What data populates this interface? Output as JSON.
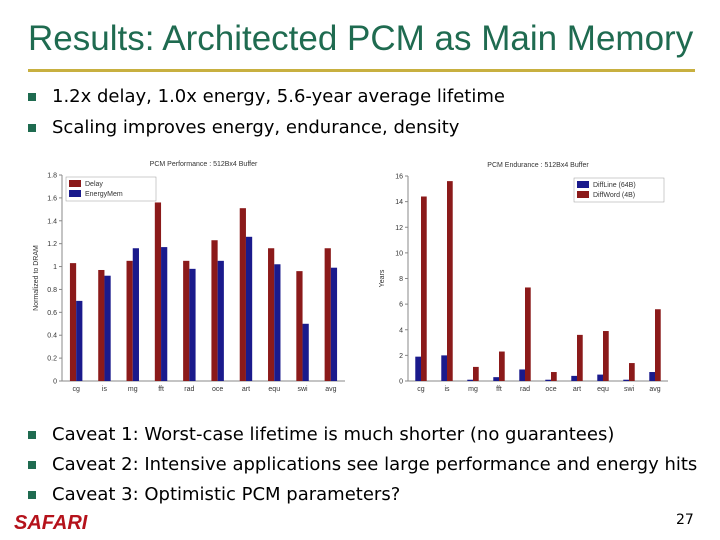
{
  "slide": {
    "title": "Results: Architected PCM as Main Memory",
    "bullets": [
      "1.2x delay, 1.0x energy, 5.6-year average lifetime",
      "Scaling improves energy, endurance, density"
    ],
    "caveats": [
      "Caveat 1: Worst-case lifetime is much shorter (no guarantees)",
      "Caveat 2: Intensive applications see large performance and energy hits",
      "Caveat 3: Optimistic PCM parameters?"
    ],
    "footer": "SAFARI",
    "page": "27"
  },
  "chart_data": [
    {
      "type": "bar",
      "title": "PCM Performance : 512Bx4 Buffer",
      "y_label": "Normalized to DRAM",
      "categories": [
        "cg",
        "is",
        "mg",
        "fft",
        "rad",
        "oce",
        "art",
        "equ",
        "swi",
        "avg"
      ],
      "series": [
        {
          "name": "Delay",
          "color": "#8b1a1a",
          "values": [
            1.03,
            0.97,
            1.05,
            1.56,
            1.05,
            1.23,
            1.51,
            1.16,
            0.96,
            1.16
          ]
        },
        {
          "name": "EnergyMem",
          "color": "#1a1a8c",
          "values": [
            0.7,
            0.92,
            1.16,
            1.17,
            0.98,
            1.05,
            1.26,
            1.02,
            0.5,
            0.99
          ]
        }
      ],
      "ylim": [
        0,
        1.8
      ],
      "yticks": [
        0,
        0.2,
        0.4,
        0.6,
        0.8,
        1,
        1.2,
        1.4,
        1.6,
        1.8
      ],
      "legend": "top-left"
    },
    {
      "type": "bar",
      "title": "PCM Endurance : 512Bx4 Buffer",
      "y_label": "Years",
      "categories": [
        "cg",
        "is",
        "mg",
        "fft",
        "rad",
        "oce",
        "art",
        "equ",
        "swi",
        "avg"
      ],
      "series": [
        {
          "name": "DiffLine (64B)",
          "color": "#1a1a8c",
          "values": [
            1.9,
            2,
            0.1,
            0.3,
            0.9,
            0.1,
            0.4,
            0.5,
            0.1,
            0.7
          ]
        },
        {
          "name": "DiffWord (4B)",
          "color": "#8b1a1a",
          "values": [
            14.4,
            15.6,
            1.1,
            2.3,
            7.3,
            0.7,
            3.6,
            3.9,
            1.4,
            5.6
          ]
        }
      ],
      "ylim": [
        0,
        16
      ],
      "yticks": [
        0,
        2,
        4,
        6,
        8,
        10,
        12,
        14,
        16
      ],
      "legend": "top-right"
    }
  ]
}
